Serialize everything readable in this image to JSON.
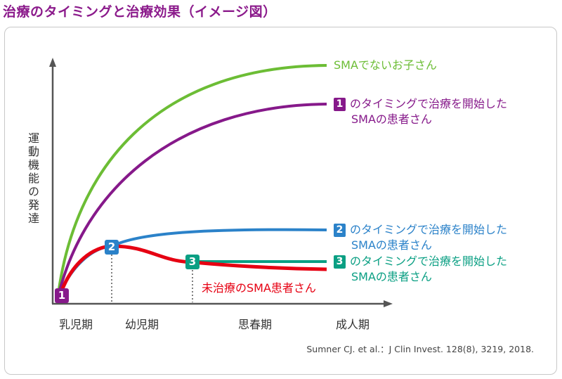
{
  "title": "治療のタイミングと治療効果（イメージ図）",
  "y_axis_label": "運動機能の発達",
  "x_axis_labels": [
    "乳児期",
    "幼児期",
    "思春期",
    "成人期"
  ],
  "curves": [
    {
      "label": "SMAでないお子さん",
      "color": "#6cbd35"
    },
    {
      "marker": "1",
      "label_line1": "のタイミングで治療を開始した",
      "label_line2": "SMAの患者さん",
      "color": "#86198a"
    },
    {
      "marker": "2",
      "label_line1": "のタイミングで治療を開始した",
      "label_line2": "SMAの患者さん",
      "color": "#2b82c9"
    },
    {
      "marker": "3",
      "label_line1": "のタイミングで治療を開始した",
      "label_line2": "SMAの患者さん",
      "color": "#0a9f83"
    },
    {
      "label": "未治療のSMA患者さん",
      "color": "#e60012"
    }
  ],
  "citation": "Sumner CJ. et al.：J Clin Invest. 128(8), 3219, 2018."
}
